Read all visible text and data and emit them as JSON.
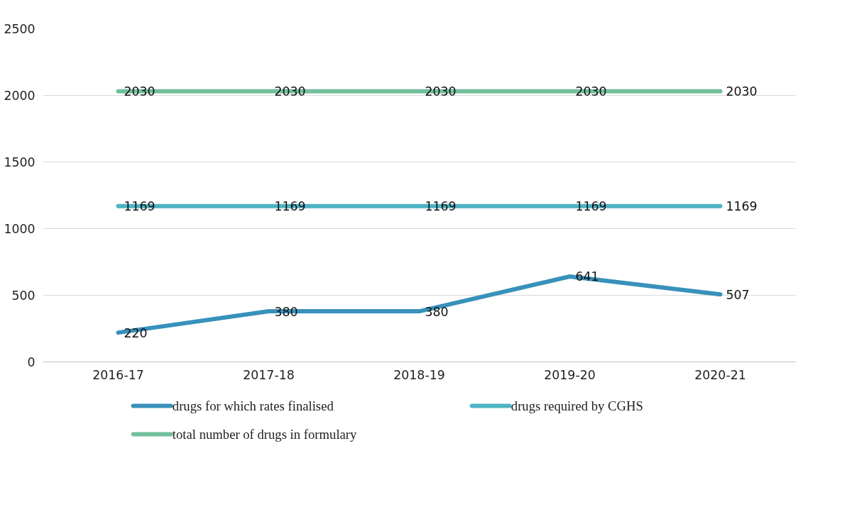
{
  "chart_data": {
    "type": "line",
    "categories": [
      "2016-17",
      "2017-18",
      "2018-19",
      "2019-20",
      "2020-21"
    ],
    "series": [
      {
        "name": "drugs for which rates finalised",
        "color": "#3891bb",
        "values": [
          220,
          380,
          380,
          641,
          507
        ]
      },
      {
        "name": "drugs required by CGHS",
        "color": "#4db4c4",
        "values": [
          1169,
          1169,
          1169,
          1169,
          1169
        ]
      },
      {
        "name": "total number of drugs in formulary",
        "color": "#72bf9b",
        "values": [
          2030,
          2030,
          2030,
          2030,
          2030
        ]
      }
    ],
    "ylim": [
      0,
      2500
    ],
    "yticks": [
      0,
      500,
      1000,
      1500,
      2000,
      2500
    ],
    "grid": "y",
    "legend": "bottom",
    "data_labels": true,
    "marker": "none",
    "line_style": "solid"
  }
}
